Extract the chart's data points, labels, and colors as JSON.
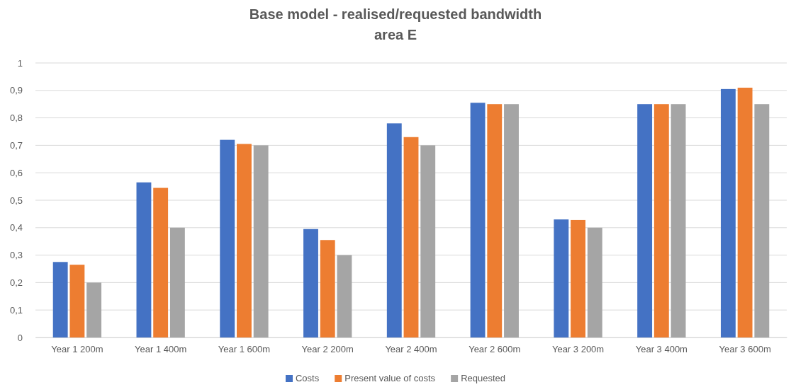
{
  "chart_data": {
    "type": "bar",
    "title": "Base model - realised/requested bandwidth",
    "subtitle": "area E",
    "categories": [
      "Year 1 200m",
      "Year 1 400m",
      "Year 1 600m",
      "Year 2 200m",
      "Year 2 400m",
      "Year 2 600m",
      "Year 3 200m",
      "Year 3 400m",
      "Year 3 600m"
    ],
    "series": [
      {
        "name": "Costs",
        "color": "#4472c4",
        "values": [
          0.275,
          0.565,
          0.72,
          0.395,
          0.78,
          0.855,
          0.43,
          0.85,
          0.905
        ]
      },
      {
        "name": "Present value of costs",
        "color": "#ed7d31",
        "values": [
          0.265,
          0.545,
          0.705,
          0.355,
          0.73,
          0.85,
          0.428,
          0.85,
          0.91
        ]
      },
      {
        "name": "Requested",
        "color": "#a5a5a5",
        "values": [
          0.2,
          0.4,
          0.7,
          0.3,
          0.7,
          0.85,
          0.4,
          0.85,
          0.85
        ]
      }
    ],
    "ylim": [
      0,
      1
    ],
    "yticks": [
      0,
      {
        "value": 0.1,
        "label": "0,1"
      },
      {
        "value": 0.2,
        "label": "0,2"
      },
      {
        "value": 0.3,
        "label": "0,3"
      },
      {
        "value": 0.4,
        "label": "0,4"
      },
      {
        "value": 0.5,
        "label": "0,5"
      },
      {
        "value": 0.6,
        "label": "0,6"
      },
      {
        "value": 0.7,
        "label": "0,7"
      },
      {
        "value": 0.8,
        "label": "0,8"
      },
      {
        "value": 0.9,
        "label": "0,9"
      },
      1
    ],
    "grid": "y",
    "legend": "bottom"
  }
}
